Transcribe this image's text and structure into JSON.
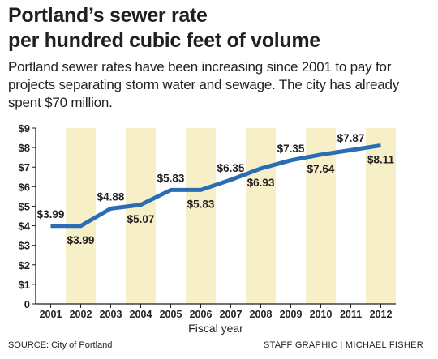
{
  "title_line1": "Portland’s sewer rate",
  "title_line2": "per hundred cubic feet of volume",
  "subtitle": "Portland sewer rates have been increasing since 2001 to pay for projects separating storm water and sewage. The city has already spent $70 million.",
  "source": "SOURCE: City of Portland",
  "credit": "STAFF GRAPHIC | MICHAEL FISHER",
  "chart_data": {
    "type": "line",
    "xlabel": "Fiscal year",
    "ylabel": "",
    "ylim": [
      0,
      9
    ],
    "yticks": [
      "0",
      "$1",
      "$2",
      "$3",
      "$4",
      "$5",
      "$6",
      "$7",
      "$8",
      "$9"
    ],
    "categories": [
      "2001",
      "2002",
      "2003",
      "2004",
      "2005",
      "2006",
      "2007",
      "2008",
      "2009",
      "2010",
      "2011",
      "2012"
    ],
    "values": [
      3.99,
      3.99,
      4.88,
      5.07,
      5.83,
      5.83,
      6.35,
      6.93,
      7.35,
      7.64,
      7.87,
      8.11
    ],
    "data_labels": [
      "$3.99",
      "$3.99",
      "$4.88",
      "$5.07",
      "$5.83",
      "$5.83",
      "$6.35",
      "$6.93",
      "$7.35",
      "$7.64",
      "$7.87",
      "$8.11"
    ],
    "label_position": [
      "above",
      "below",
      "above",
      "below",
      "above",
      "below",
      "above",
      "below",
      "above",
      "below",
      "above",
      "below"
    ],
    "alternate_column_shading": true,
    "colors": {
      "line": "#2a6db5",
      "band": "#f6efc8",
      "text": "#231f20"
    },
    "grid": false
  }
}
